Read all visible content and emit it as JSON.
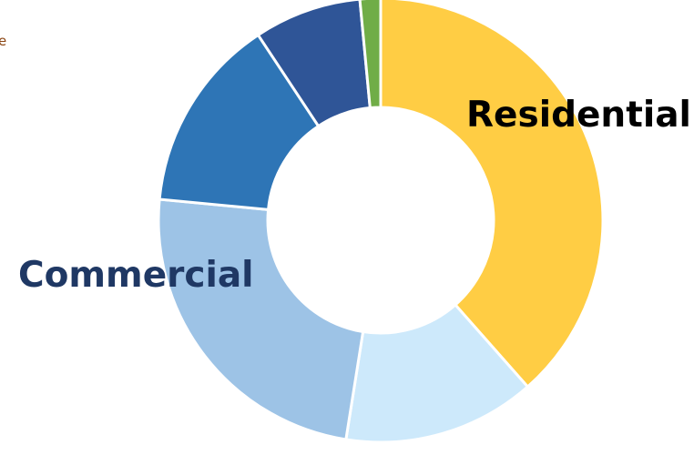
{
  "corner_text": "e",
  "chart_data": {
    "type": "pie",
    "variant": "donut",
    "start_angle_deg": 0,
    "direction": "clockwise",
    "slices": [
      {
        "label": "Residential",
        "value": 38.5,
        "color": "#ffcd44"
      },
      {
        "label": "",
        "value": 14.0,
        "color": "#cde9fb"
      },
      {
        "label": "Commercial",
        "value": 24.0,
        "color": "#9dc3e6"
      },
      {
        "label": "",
        "value": 14.2,
        "color": "#2e75b6"
      },
      {
        "label": "",
        "value": 7.8,
        "color": "#2f5597"
      },
      {
        "label": "",
        "value": 1.5,
        "color": "#70ad47"
      }
    ],
    "annotations": {
      "residential": "Residential",
      "commercial": "Commercial"
    }
  }
}
